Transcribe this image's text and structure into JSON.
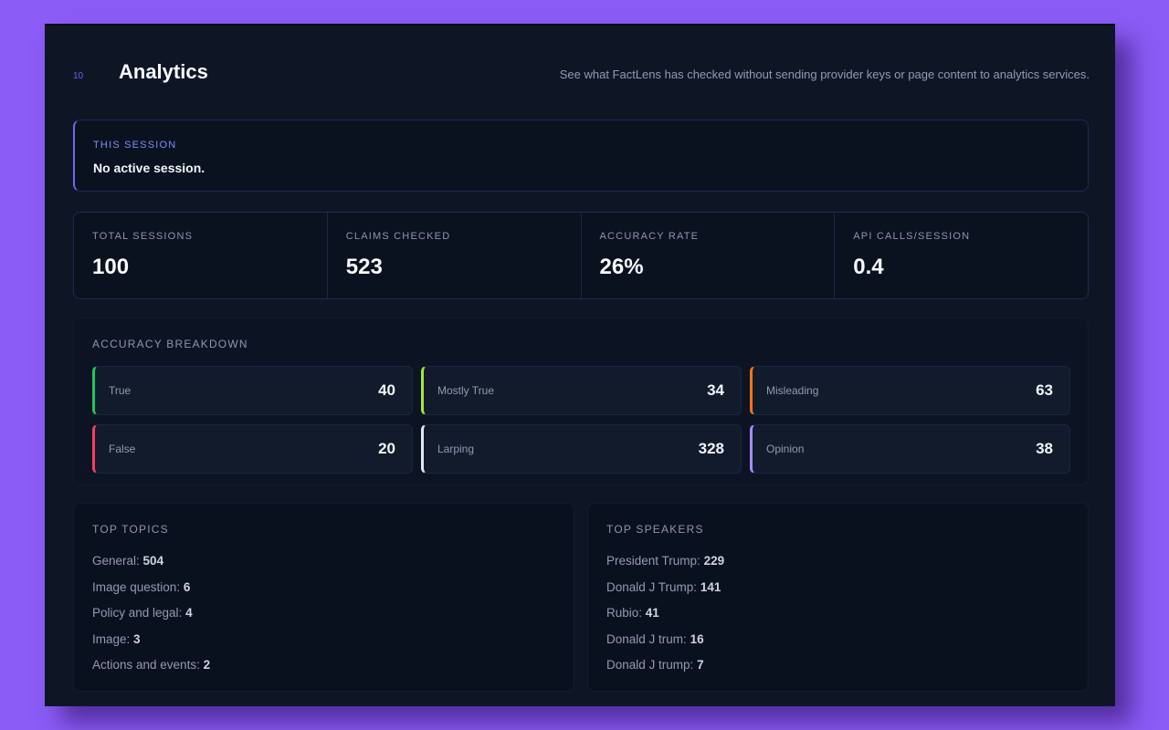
{
  "header": {
    "index": "10",
    "title": "Analytics",
    "description": "See what FactLens has checked without sending provider keys or page content to analytics services."
  },
  "session": {
    "label": "THIS SESSION",
    "status": "No active session."
  },
  "stats": [
    {
      "label": "TOTAL SESSIONS",
      "value": "100"
    },
    {
      "label": "CLAIMS CHECKED",
      "value": "523"
    },
    {
      "label": "ACCURACY RATE",
      "value": "26%"
    },
    {
      "label": "API CALLS/SESSION",
      "value": "0.4"
    }
  ],
  "breakdown": {
    "title": "ACCURACY BREAKDOWN",
    "items": [
      {
        "label": "True",
        "count": "40",
        "color": "#22c55e"
      },
      {
        "label": "Mostly True",
        "count": "34",
        "color": "#a3e635"
      },
      {
        "label": "Misleading",
        "count": "63",
        "color": "#f97316"
      },
      {
        "label": "False",
        "count": "20",
        "color": "#f43f5e"
      },
      {
        "label": "Larping",
        "count": "328",
        "color": "#e2e8f0"
      },
      {
        "label": "Opinion",
        "count": "38",
        "color": "#a78bfa"
      }
    ]
  },
  "topics": {
    "title": "TOP TOPICS",
    "items": [
      {
        "name": "General",
        "count": "504"
      },
      {
        "name": "Image question",
        "count": "6"
      },
      {
        "name": "Policy and legal",
        "count": "4"
      },
      {
        "name": "Image",
        "count": "3"
      },
      {
        "name": "Actions and events",
        "count": "2"
      }
    ]
  },
  "speakers": {
    "title": "TOP SPEAKERS",
    "items": [
      {
        "name": "President Trump",
        "count": "229"
      },
      {
        "name": "Donald J Trump",
        "count": "141"
      },
      {
        "name": "Rubio",
        "count": "41"
      },
      {
        "name": "Donald J trum",
        "count": "16"
      },
      {
        "name": "Donald J trump",
        "count": "7"
      }
    ]
  }
}
